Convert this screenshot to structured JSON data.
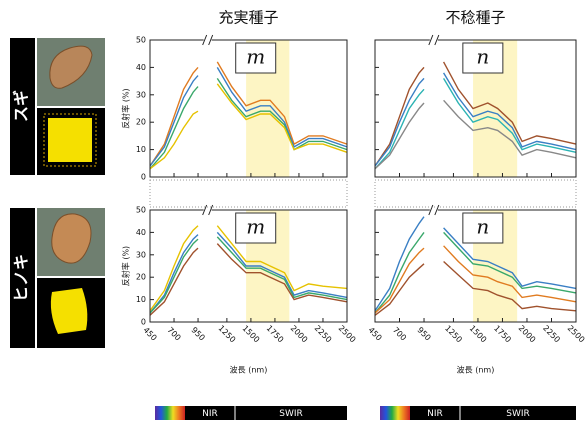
{
  "rows": [
    "スギ",
    "ヒノキ"
  ],
  "chart_data": [
    {
      "type": "line",
      "title": "充実種子",
      "label": "m",
      "y_label": "反射率 (%)",
      "x": [
        450,
        600,
        700,
        800,
        900,
        950,
        1050,
        1150,
        1300,
        1450,
        1600,
        1700,
        1850,
        1950,
        2100,
        2250,
        2500
      ],
      "xlim": [
        450,
        2500
      ],
      "xticks": [
        450,
        700,
        950,
        1250,
        1500,
        1750,
        2000,
        2250,
        2500
      ],
      "ylim": [
        0,
        50
      ],
      "yticks": [
        0,
        10,
        20,
        30,
        40,
        50
      ],
      "highlight": [
        1450,
        1900
      ],
      "series": [
        {
          "color": "#e07b20",
          "values": [
            4,
            12,
            22,
            32,
            38,
            40,
            null,
            42,
            33,
            26,
            28,
            28,
            22,
            12,
            15,
            15,
            12
          ]
        },
        {
          "color": "#3a7fc4",
          "values": [
            4,
            11,
            20,
            29,
            35,
            37,
            null,
            40,
            31,
            24,
            26,
            26,
            20,
            11,
            14,
            14,
            11
          ]
        },
        {
          "color": "#3aa86b",
          "values": [
            3,
            9,
            17,
            25,
            31,
            33,
            null,
            36,
            28,
            22,
            24,
            24,
            19,
            10,
            13,
            13,
            10
          ]
        },
        {
          "color": "#e6c200",
          "values": [
            3,
            7,
            12,
            18,
            23,
            24,
            null,
            34,
            27,
            21,
            23,
            23,
            18,
            10,
            12,
            12,
            9
          ]
        }
      ]
    },
    {
      "type": "line",
      "title": "不稔種子",
      "label": "n",
      "x": [
        450,
        600,
        700,
        800,
        900,
        950,
        1050,
        1150,
        1300,
        1450,
        1600,
        1700,
        1850,
        1950,
        2100,
        2250,
        2500
      ],
      "xlim": [
        450,
        2500
      ],
      "xticks": [
        450,
        700,
        950,
        1250,
        1500,
        1750,
        2000,
        2250,
        2500
      ],
      "ylim": [
        0,
        50
      ],
      "yticks": [
        0,
        10,
        20,
        30,
        40,
        50
      ],
      "highlight": [
        1450,
        1900
      ],
      "series": [
        {
          "color": "#a0522d",
          "values": [
            4,
            12,
            22,
            32,
            38,
            40,
            null,
            42,
            32,
            25,
            27,
            25,
            20,
            13,
            15,
            14,
            12
          ]
        },
        {
          "color": "#3a7fc4",
          "values": [
            4,
            11,
            20,
            28,
            34,
            36,
            null,
            38,
            29,
            22,
            24,
            23,
            18,
            11,
            13,
            12,
            10
          ]
        },
        {
          "color": "#2bb3b3",
          "values": [
            3,
            9,
            17,
            25,
            30,
            32,
            null,
            36,
            27,
            20,
            22,
            21,
            16,
            10,
            12,
            11,
            9
          ]
        },
        {
          "color": "#888888",
          "values": [
            3,
            8,
            14,
            20,
            25,
            27,
            null,
            28,
            22,
            17,
            18,
            17,
            13,
            8,
            10,
            9,
            7
          ]
        }
      ]
    },
    {
      "type": "line",
      "label": "m",
      "y_label": "反射率 (%)",
      "x_label": "波長 (nm)",
      "bands": [
        "NIR",
        "SWIR"
      ],
      "x": [
        450,
        600,
        700,
        800,
        900,
        950,
        1050,
        1150,
        1300,
        1450,
        1600,
        1700,
        1850,
        1950,
        2100,
        2250,
        2500
      ],
      "xlim": [
        450,
        2500
      ],
      "xticks": [
        450,
        700,
        950,
        1250,
        1500,
        1750,
        2000,
        2250,
        2500
      ],
      "ylim": [
        0,
        50
      ],
      "yticks": [
        0,
        10,
        20,
        30,
        40,
        50
      ],
      "highlight": [
        1450,
        1900
      ],
      "series": [
        {
          "color": "#e6c200",
          "values": [
            5,
            14,
            25,
            35,
            41,
            43,
            null,
            43,
            35,
            27,
            27,
            25,
            22,
            14,
            17,
            16,
            15
          ]
        },
        {
          "color": "#3a7fc4",
          "values": [
            4,
            12,
            22,
            31,
            37,
            39,
            null,
            40,
            33,
            25,
            25,
            23,
            20,
            12,
            14,
            13,
            11
          ]
        },
        {
          "color": "#3aa86b",
          "values": [
            4,
            11,
            20,
            29,
            35,
            37,
            null,
            38,
            31,
            24,
            24,
            22,
            19,
            11,
            13,
            12,
            10
          ]
        },
        {
          "color": "#a0522d",
          "values": [
            3,
            9,
            17,
            25,
            31,
            33,
            null,
            35,
            28,
            22,
            22,
            20,
            17,
            10,
            12,
            11,
            9
          ]
        }
      ]
    },
    {
      "type": "line",
      "label": "n",
      "x_label": "波長 (nm)",
      "bands": [
        "NIR",
        "SWIR"
      ],
      "x": [
        450,
        600,
        700,
        800,
        900,
        950,
        1050,
        1150,
        1300,
        1450,
        1600,
        1700,
        1850,
        1950,
        2100,
        2250,
        2500
      ],
      "xlim": [
        450,
        2500
      ],
      "xticks": [
        450,
        700,
        950,
        1250,
        1500,
        1750,
        2000,
        2250,
        2500
      ],
      "ylim": [
        0,
        50
      ],
      "yticks": [
        0,
        10,
        20,
        30,
        40,
        50
      ],
      "highlight": [
        1450,
        1900
      ],
      "series": [
        {
          "color": "#3a7fc4",
          "values": [
            5,
            15,
            27,
            37,
            44,
            47,
            null,
            42,
            35,
            28,
            27,
            25,
            22,
            16,
            18,
            17,
            15
          ]
        },
        {
          "color": "#3aa86b",
          "values": [
            4,
            12,
            22,
            31,
            37,
            40,
            null,
            40,
            33,
            26,
            25,
            23,
            20,
            15,
            16,
            15,
            13
          ]
        },
        {
          "color": "#e07b20",
          "values": [
            4,
            10,
            18,
            26,
            31,
            33,
            null,
            34,
            27,
            21,
            20,
            18,
            16,
            11,
            12,
            11,
            9
          ]
        },
        {
          "color": "#a0522d",
          "values": [
            3,
            8,
            14,
            20,
            24,
            26,
            null,
            27,
            21,
            15,
            14,
            12,
            10,
            6,
            7,
            6,
            5
          ]
        }
      ]
    }
  ]
}
